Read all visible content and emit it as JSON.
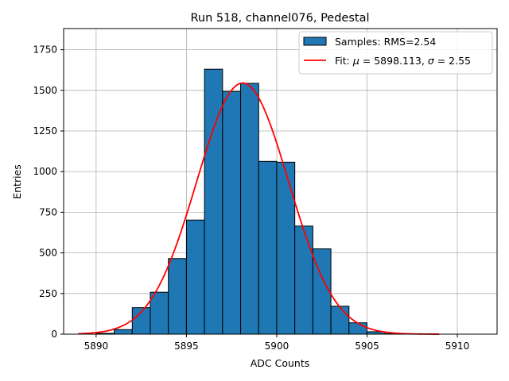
{
  "chart_data": {
    "type": "bar",
    "title": "Run 518, channel076, Pedestal",
    "xlabel": "ADC Counts",
    "ylabel": "Entries",
    "xlim": [
      5888.2,
      5912.2
    ],
    "ylim": [
      0,
      1880
    ],
    "xticks": [
      5890,
      5895,
      5900,
      5905,
      5910
    ],
    "yticks": [
      0,
      250,
      500,
      750,
      1000,
      1250,
      1500,
      1750
    ],
    "grid": true,
    "legend_position": "upper-right",
    "legend": {
      "samples_label": "Samples: RMS=2.54",
      "fit_label_prefix": "Fit: ",
      "fit_mu_symbol": "μ",
      "fit_mu_value": " = 5898.113, ",
      "fit_sigma_symbol": "σ",
      "fit_sigma_value": " = 2.55"
    },
    "histogram": {
      "name": "Samples",
      "bin_width": 1,
      "bin_left_edges": [
        5890,
        5891,
        5892,
        5893,
        5894,
        5895,
        5896,
        5897,
        5898,
        5899,
        5900,
        5901,
        5902,
        5903,
        5904,
        5905,
        5906
      ],
      "counts": [
        5,
        28,
        163,
        258,
        465,
        702,
        1630,
        1493,
        1543,
        1063,
        1058,
        665,
        525,
        172,
        70,
        15,
        3
      ],
      "color": "#1f77b4",
      "edge_color": "#000000"
    },
    "fit": {
      "name": "Fit",
      "type": "gaussian",
      "mu": 5898.113,
      "sigma": 2.55,
      "amplitude": 1545,
      "x_range": [
        5889,
        5909
      ],
      "color": "#ff0000"
    }
  }
}
